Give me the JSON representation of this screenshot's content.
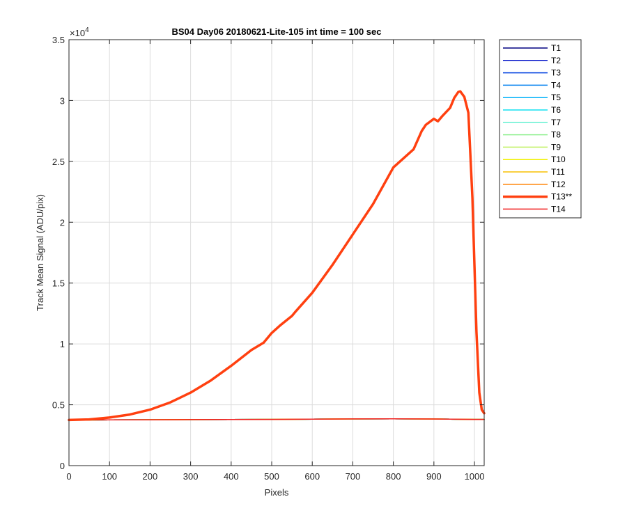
{
  "chart_data": {
    "type": "line",
    "title": "BS04 Day06 20180621-Lite-105 int time = 100 sec",
    "xlabel": "Pixels",
    "ylabel": "Track Mean Signal (ADU/pix)",
    "y_exponent_label": "×10",
    "y_exponent_power": "4",
    "xlim": [
      0,
      1024
    ],
    "ylim": [
      0,
      35000
    ],
    "xticks": [
      0,
      100,
      200,
      300,
      400,
      500,
      600,
      700,
      800,
      900,
      1000
    ],
    "yticks": [
      0,
      5000,
      10000,
      15000,
      20000,
      25000,
      30000,
      35000
    ],
    "xtick_labels": [
      "0",
      "100",
      "200",
      "300",
      "400",
      "500",
      "600",
      "700",
      "800",
      "900",
      "1000"
    ],
    "ytick_labels": [
      "0",
      "0.5",
      "1",
      "1.5",
      "2",
      "2.5",
      "3",
      "3.5"
    ],
    "grid": true,
    "legend_position": "outside-right-top",
    "baseline_x": [
      0,
      100,
      200,
      300,
      400,
      500,
      600,
      700,
      800,
      900,
      1000,
      1024
    ],
    "baseline_y": [
      3750,
      3760,
      3770,
      3780,
      3790,
      3800,
      3820,
      3840,
      3850,
      3830,
      3800,
      3800
    ],
    "series": [
      {
        "name": "T1",
        "color": "#000080",
        "width": 1.5
      },
      {
        "name": "T2",
        "color": "#0010c8",
        "width": 1.5
      },
      {
        "name": "T3",
        "color": "#0040e0",
        "width": 1.5
      },
      {
        "name": "T4",
        "color": "#0080f0",
        "width": 1.5
      },
      {
        "name": "T5",
        "color": "#00b0f8",
        "width": 1.5
      },
      {
        "name": "T6",
        "color": "#10e0f0",
        "width": 1.5
      },
      {
        "name": "T7",
        "color": "#60f0d0",
        "width": 1.5
      },
      {
        "name": "T8",
        "color": "#90f090",
        "width": 1.5
      },
      {
        "name": "T9",
        "color": "#c0f060",
        "width": 1.5
      },
      {
        "name": "T10",
        "color": "#f0f000",
        "width": 1.5
      },
      {
        "name": "T11",
        "color": "#f8c000",
        "width": 1.5
      },
      {
        "name": "T12",
        "color": "#ff8000",
        "width": 1.5
      },
      {
        "name": "T13**",
        "color": "#ff4010",
        "width": 3.5,
        "x": [
          0,
          50,
          100,
          150,
          200,
          250,
          300,
          350,
          400,
          450,
          480,
          500,
          520,
          550,
          560,
          600,
          650,
          700,
          750,
          800,
          850,
          870,
          880,
          900,
          910,
          920,
          940,
          950,
          960,
          965,
          975,
          985,
          995,
          1005,
          1012,
          1018,
          1024
        ],
        "y": [
          3750,
          3800,
          3950,
          4200,
          4600,
          5200,
          6000,
          7000,
          8200,
          9500,
          10100,
          10900,
          11500,
          12300,
          12700,
          14200,
          16500,
          19000,
          21500,
          24500,
          26000,
          27500,
          28000,
          28500,
          28300,
          28700,
          29400,
          30200,
          30700,
          30750,
          30300,
          29000,
          22000,
          11000,
          6000,
          4600,
          4300
        ]
      },
      {
        "name": "T14",
        "color": "#f02020",
        "width": 1.5
      }
    ]
  }
}
